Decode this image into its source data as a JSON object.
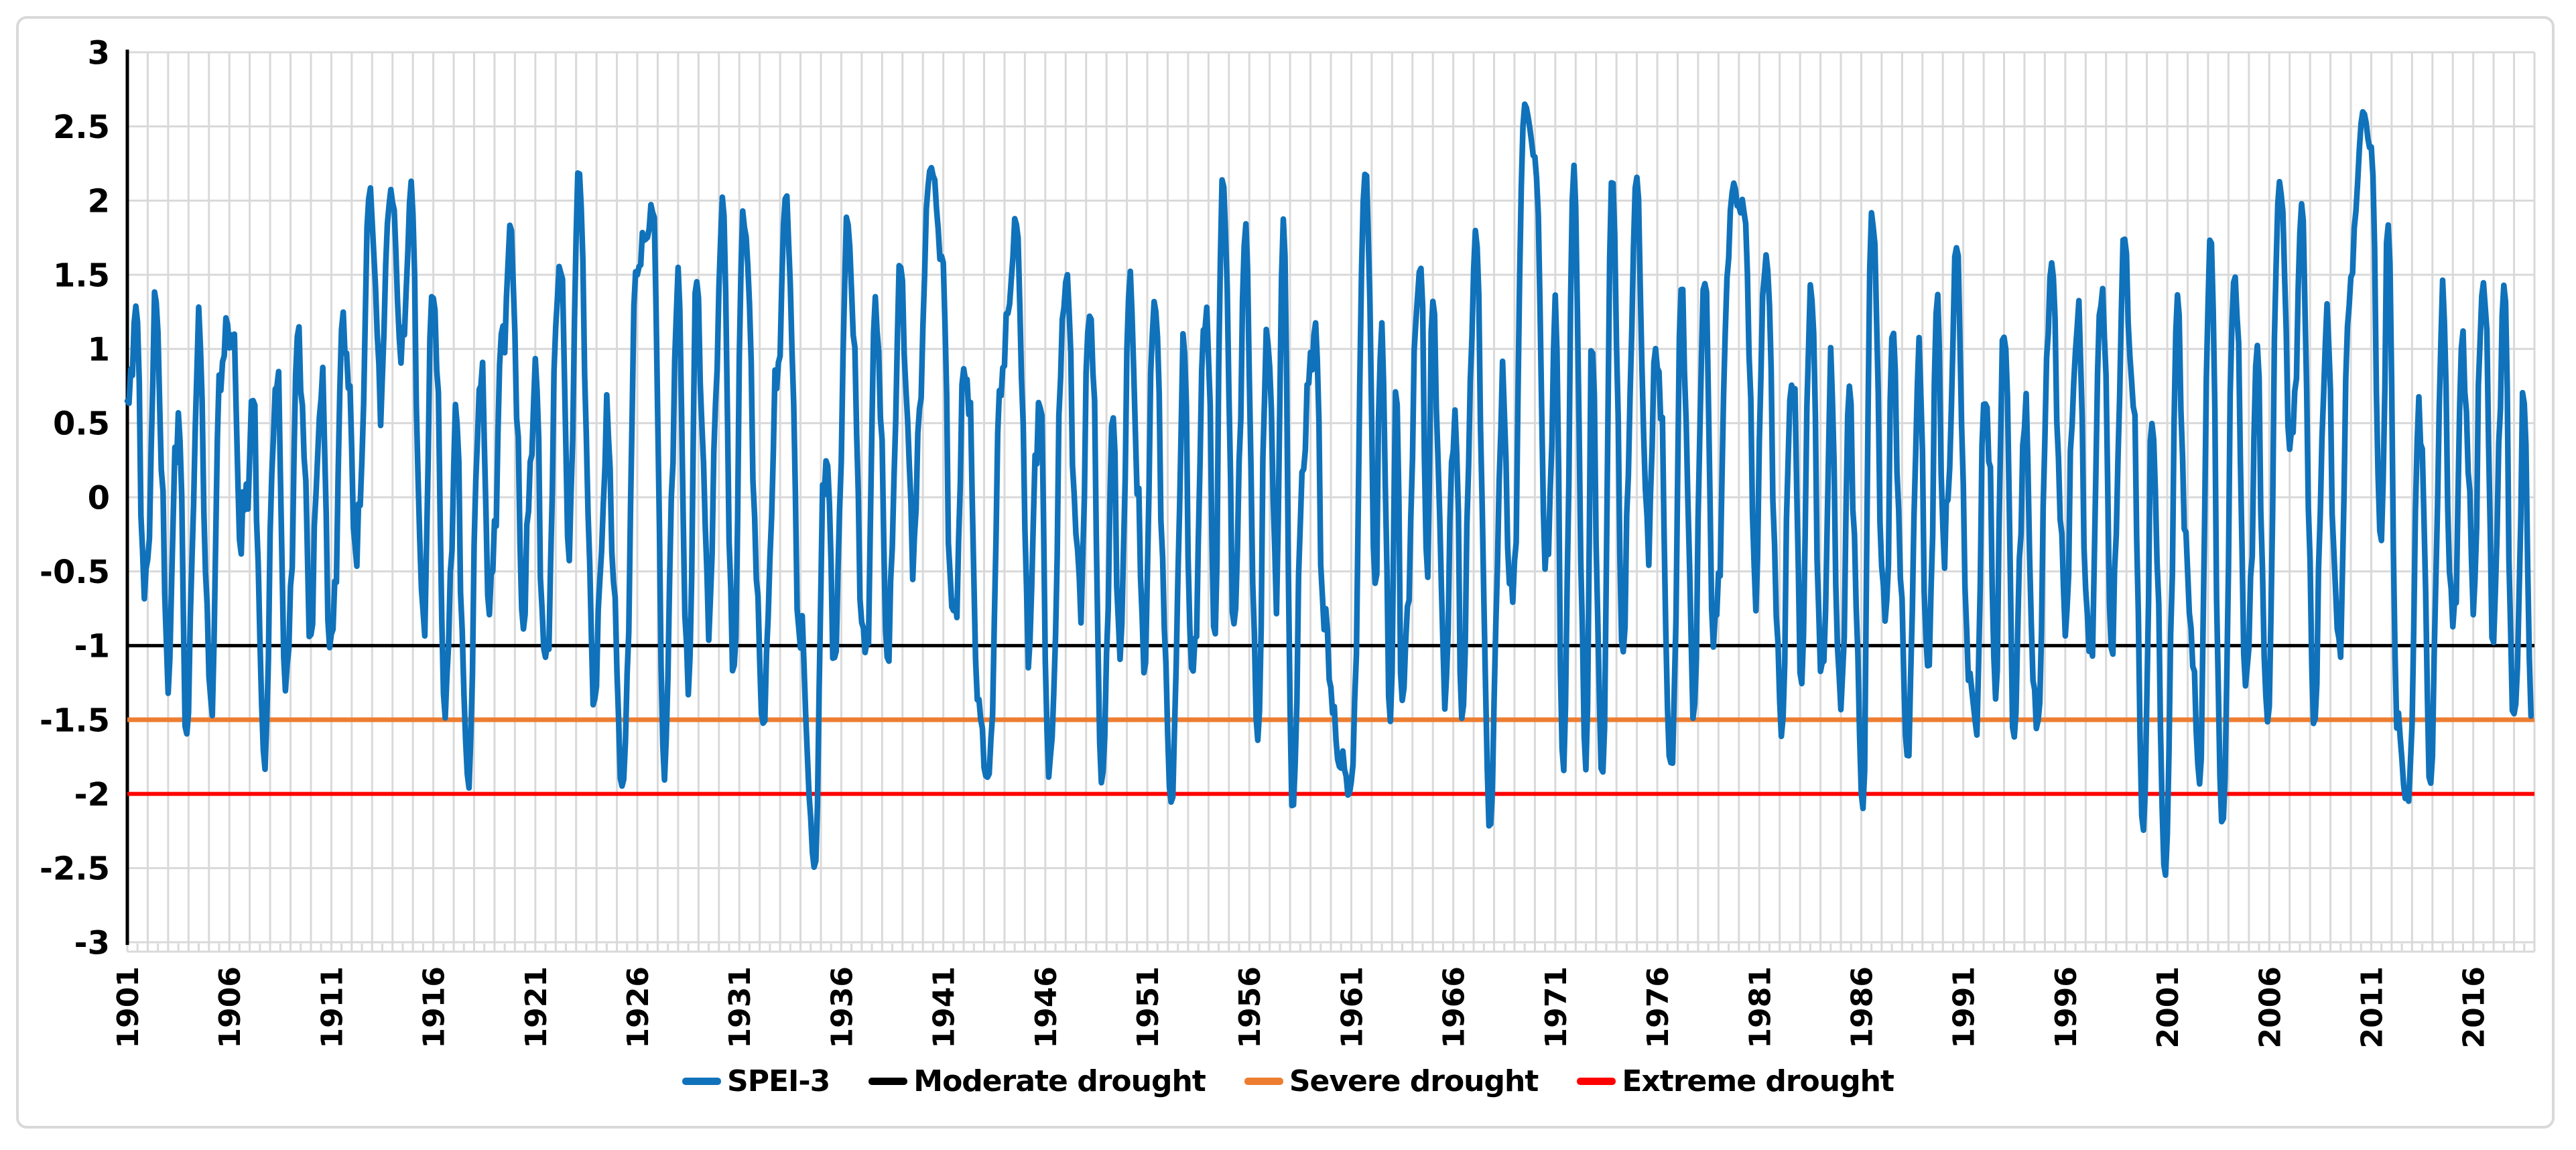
{
  "chart_data": {
    "type": "line",
    "title": "",
    "x_axis": {
      "start": 1901,
      "end": 2019,
      "gridline_every_year": true,
      "tick_labels": [
        "1901",
        "1906",
        "1911",
        "1916",
        "1921",
        "1926",
        "1931",
        "1936",
        "1941",
        "1946",
        "1951",
        "1956",
        "1961",
        "1966",
        "1971",
        "1976",
        "1981",
        "1986",
        "1991",
        "1996",
        "2001",
        "2006",
        "2011",
        "2016"
      ],
      "tick_label_rotation_deg": -90
    },
    "y_axis": {
      "min": -3,
      "max": 3,
      "step": 0.5,
      "tick_labels": [
        "3",
        "2.5",
        "2",
        "1.5",
        "1",
        "0.5",
        "0",
        "-0.5",
        "-1",
        "-1.5",
        "-2",
        "-2.5",
        "-3"
      ]
    },
    "grid_color": "#d9d9d9",
    "axis_color": "#000000",
    "legend_position": "bottom",
    "series": [
      {
        "name": "SPEI-3",
        "color": "#1072BA",
        "kind": "anchors",
        "anchors": [
          [
            1901.0,
            0.55
          ],
          [
            1901.4,
            1.3
          ],
          [
            1901.9,
            -0.7
          ],
          [
            1902.4,
            1.25
          ],
          [
            1903.0,
            -1.2
          ],
          [
            1903.5,
            0.6
          ],
          [
            1903.9,
            -1.55
          ],
          [
            1904.5,
            1.15
          ],
          [
            1905.1,
            -1.4
          ],
          [
            1905.6,
            0.9
          ],
          [
            1906.1,
            1.1
          ],
          [
            1906.6,
            -0.3
          ],
          [
            1907.2,
            0.6
          ],
          [
            1907.7,
            -1.75
          ],
          [
            1908.3,
            0.9
          ],
          [
            1908.8,
            -1.3
          ],
          [
            1909.4,
            1.0
          ],
          [
            1910.0,
            -0.9
          ],
          [
            1910.5,
            0.8
          ],
          [
            1911.0,
            -1.0
          ],
          [
            1911.6,
            1.2
          ],
          [
            1912.3,
            -0.4
          ],
          [
            1912.9,
            2.05
          ],
          [
            1913.4,
            0.7
          ],
          [
            1913.9,
            2.1
          ],
          [
            1914.5,
            1.0
          ],
          [
            1914.9,
            2.1
          ],
          [
            1915.5,
            -0.9
          ],
          [
            1916.0,
            1.4
          ],
          [
            1916.6,
            -1.45
          ],
          [
            1917.1,
            0.5
          ],
          [
            1917.7,
            -1.9
          ],
          [
            1918.3,
            0.9
          ],
          [
            1918.8,
            -0.75
          ],
          [
            1919.4,
            1.0
          ],
          [
            1919.8,
            1.75
          ],
          [
            1920.4,
            -0.75
          ],
          [
            1921.0,
            0.85
          ],
          [
            1921.5,
            -1.15
          ],
          [
            1922.2,
            1.6
          ],
          [
            1922.7,
            -0.4
          ],
          [
            1923.1,
            2.2
          ],
          [
            1923.9,
            -1.3
          ],
          [
            1924.5,
            0.5
          ],
          [
            1925.3,
            -1.95
          ],
          [
            1926.0,
            1.55
          ],
          [
            1926.8,
            1.9
          ],
          [
            1927.3,
            -1.8
          ],
          [
            1928.0,
            1.45
          ],
          [
            1928.5,
            -1.35
          ],
          [
            1928.9,
            1.4
          ],
          [
            1929.5,
            -0.8
          ],
          [
            1930.2,
            1.95
          ],
          [
            1930.7,
            -1.2
          ],
          [
            1931.2,
            1.95
          ],
          [
            1932.2,
            -1.5
          ],
          [
            1932.8,
            0.6
          ],
          [
            1933.3,
            2.0
          ],
          [
            1934.0,
            -0.9
          ],
          [
            1934.7,
            -2.5
          ],
          [
            1935.2,
            0.35
          ],
          [
            1935.7,
            -1.1
          ],
          [
            1936.3,
            1.8
          ],
          [
            1937.2,
            -1.1
          ],
          [
            1937.7,
            1.35
          ],
          [
            1938.3,
            -1.0
          ],
          [
            1938.9,
            1.5
          ],
          [
            1939.5,
            -0.35
          ],
          [
            1940.4,
            2.25
          ],
          [
            1940.9,
            1.7
          ],
          [
            1941.5,
            -0.85
          ],
          [
            1942.1,
            0.9
          ],
          [
            1942.8,
            -1.55
          ],
          [
            1943.2,
            -1.95
          ],
          [
            1943.9,
            0.95
          ],
          [
            1944.6,
            1.85
          ],
          [
            1945.2,
            -0.95
          ],
          [
            1945.7,
            0.65
          ],
          [
            1946.2,
            -1.9
          ],
          [
            1947.0,
            1.5
          ],
          [
            1947.7,
            -0.6
          ],
          [
            1948.2,
            1.35
          ],
          [
            1948.8,
            -1.95
          ],
          [
            1949.3,
            0.35
          ],
          [
            1949.7,
            -1.15
          ],
          [
            1950.1,
            1.4
          ],
          [
            1950.9,
            -1.0
          ],
          [
            1951.3,
            1.4
          ],
          [
            1952.2,
            -2.05
          ],
          [
            1952.8,
            0.9
          ],
          [
            1953.2,
            -1.3
          ],
          [
            1953.9,
            1.35
          ],
          [
            1954.3,
            -0.8
          ],
          [
            1954.7,
            2.2
          ],
          [
            1955.3,
            -0.85
          ],
          [
            1955.8,
            1.75
          ],
          [
            1956.4,
            -1.65
          ],
          [
            1956.9,
            1.2
          ],
          [
            1957.3,
            -0.5
          ],
          [
            1957.7,
            1.9
          ],
          [
            1958.1,
            -2.1
          ],
          [
            1958.7,
            0.4
          ],
          [
            1959.2,
            1.1
          ],
          [
            1959.7,
            -0.95
          ],
          [
            1960.4,
            -1.75
          ],
          [
            1961.0,
            -1.95
          ],
          [
            1961.7,
            2.25
          ],
          [
            1962.2,
            -0.55
          ],
          [
            1962.5,
            1.15
          ],
          [
            1962.9,
            -1.6
          ],
          [
            1963.2,
            0.6
          ],
          [
            1963.5,
            -1.35
          ],
          [
            1964.4,
            1.65
          ],
          [
            1964.7,
            -0.35
          ],
          [
            1965.0,
            1.3
          ],
          [
            1965.6,
            -1.3
          ],
          [
            1966.1,
            0.6
          ],
          [
            1966.4,
            -1.5
          ],
          [
            1967.1,
            1.75
          ],
          [
            1967.8,
            -2.2
          ],
          [
            1968.4,
            0.7
          ],
          [
            1968.9,
            -0.8
          ],
          [
            1969.5,
            2.65
          ],
          [
            1970.0,
            2.3
          ],
          [
            1970.6,
            -0.5
          ],
          [
            1971.0,
            1.3
          ],
          [
            1971.4,
            -1.85
          ],
          [
            1971.9,
            2.2
          ],
          [
            1972.5,
            -1.85
          ],
          [
            1972.8,
            0.9
          ],
          [
            1973.3,
            -1.95
          ],
          [
            1973.8,
            2.2
          ],
          [
            1974.3,
            -0.9
          ],
          [
            1975.0,
            2.15
          ],
          [
            1975.5,
            -0.3
          ],
          [
            1976.0,
            0.95
          ],
          [
            1976.7,
            -1.9
          ],
          [
            1977.2,
            1.4
          ],
          [
            1977.8,
            -1.35
          ],
          [
            1978.3,
            1.55
          ],
          [
            1978.8,
            -1.0
          ],
          [
            1979.7,
            2.05
          ],
          [
            1980.3,
            1.9
          ],
          [
            1980.8,
            -0.5
          ],
          [
            1981.3,
            1.7
          ],
          [
            1982.1,
            -1.55
          ],
          [
            1982.6,
            0.85
          ],
          [
            1983.1,
            -1.25
          ],
          [
            1983.5,
            1.45
          ],
          [
            1984.1,
            -1.25
          ],
          [
            1984.5,
            0.85
          ],
          [
            1985.0,
            -1.45
          ],
          [
            1985.4,
            0.6
          ],
          [
            1986.1,
            -2.1
          ],
          [
            1986.5,
            1.95
          ],
          [
            1987.2,
            -0.9
          ],
          [
            1987.5,
            1.1
          ],
          [
            1988.3,
            -1.7
          ],
          [
            1988.8,
            0.9
          ],
          [
            1989.3,
            -1.3
          ],
          [
            1989.7,
            1.25
          ],
          [
            1990.1,
            -0.4
          ],
          [
            1990.7,
            1.7
          ],
          [
            1991.2,
            -0.95
          ],
          [
            1991.6,
            -1.55
          ],
          [
            1992.1,
            0.75
          ],
          [
            1992.6,
            -1.3
          ],
          [
            1993.0,
            1.2
          ],
          [
            1993.5,
            -1.6
          ],
          [
            1994.0,
            0.6
          ],
          [
            1994.6,
            -1.55
          ],
          [
            1995.3,
            1.55
          ],
          [
            1996.0,
            -0.85
          ],
          [
            1996.6,
            1.2
          ],
          [
            1997.2,
            -1.1
          ],
          [
            1997.8,
            1.5
          ],
          [
            1998.3,
            -0.95
          ],
          [
            1998.9,
            1.7
          ],
          [
            1999.4,
            0.35
          ],
          [
            1999.8,
            -2.3
          ],
          [
            2000.3,
            0.5
          ],
          [
            2000.9,
            -2.55
          ],
          [
            2001.5,
            1.3
          ],
          [
            2002.0,
            -0.6
          ],
          [
            2002.6,
            -1.9
          ],
          [
            2003.1,
            1.75
          ],
          [
            2003.7,
            -2.25
          ],
          [
            2004.3,
            1.6
          ],
          [
            2004.9,
            -1.25
          ],
          [
            2005.4,
            0.9
          ],
          [
            2005.9,
            -1.6
          ],
          [
            2006.5,
            2.15
          ],
          [
            2007.1,
            0.3
          ],
          [
            2007.6,
            1.95
          ],
          [
            2008.2,
            -1.45
          ],
          [
            2008.8,
            1.15
          ],
          [
            2009.4,
            -1.1
          ],
          [
            2010.0,
            1.5
          ],
          [
            2010.6,
            2.6
          ],
          [
            2011.0,
            2.35
          ],
          [
            2011.5,
            -0.4
          ],
          [
            2011.8,
            1.9
          ],
          [
            2012.3,
            -1.6
          ],
          [
            2012.8,
            -2.1
          ],
          [
            2013.4,
            0.6
          ],
          [
            2013.9,
            -1.9
          ],
          [
            2014.5,
            1.35
          ],
          [
            2015.0,
            -0.9
          ],
          [
            2015.5,
            1.0
          ],
          [
            2016.0,
            -0.7
          ],
          [
            2016.5,
            1.5
          ],
          [
            2017.0,
            -0.9
          ],
          [
            2017.5,
            1.45
          ],
          [
            2018.0,
            -1.55
          ],
          [
            2018.5,
            0.6
          ],
          [
            2018.9,
            -1.75
          ]
        ]
      },
      {
        "name": "Moderate drought",
        "color": "#000000",
        "kind": "threshold",
        "value": -1
      },
      {
        "name": "Severe drought",
        "color": "#ED7D31",
        "kind": "threshold",
        "value": -1.5
      },
      {
        "name": "Extreme drought",
        "color": "#FF0000",
        "kind": "threshold",
        "value": -2
      }
    ],
    "texture": {
      "amplitude": 0.45,
      "samples_per_year": 12,
      "harmonics": [
        [
          2.3,
          0.7,
          0.5
        ],
        [
          5.1,
          2.6,
          0.3
        ],
        [
          11.7,
          4.9,
          0.2
        ]
      ],
      "clamp": [
        -2.56,
        2.68
      ]
    }
  }
}
